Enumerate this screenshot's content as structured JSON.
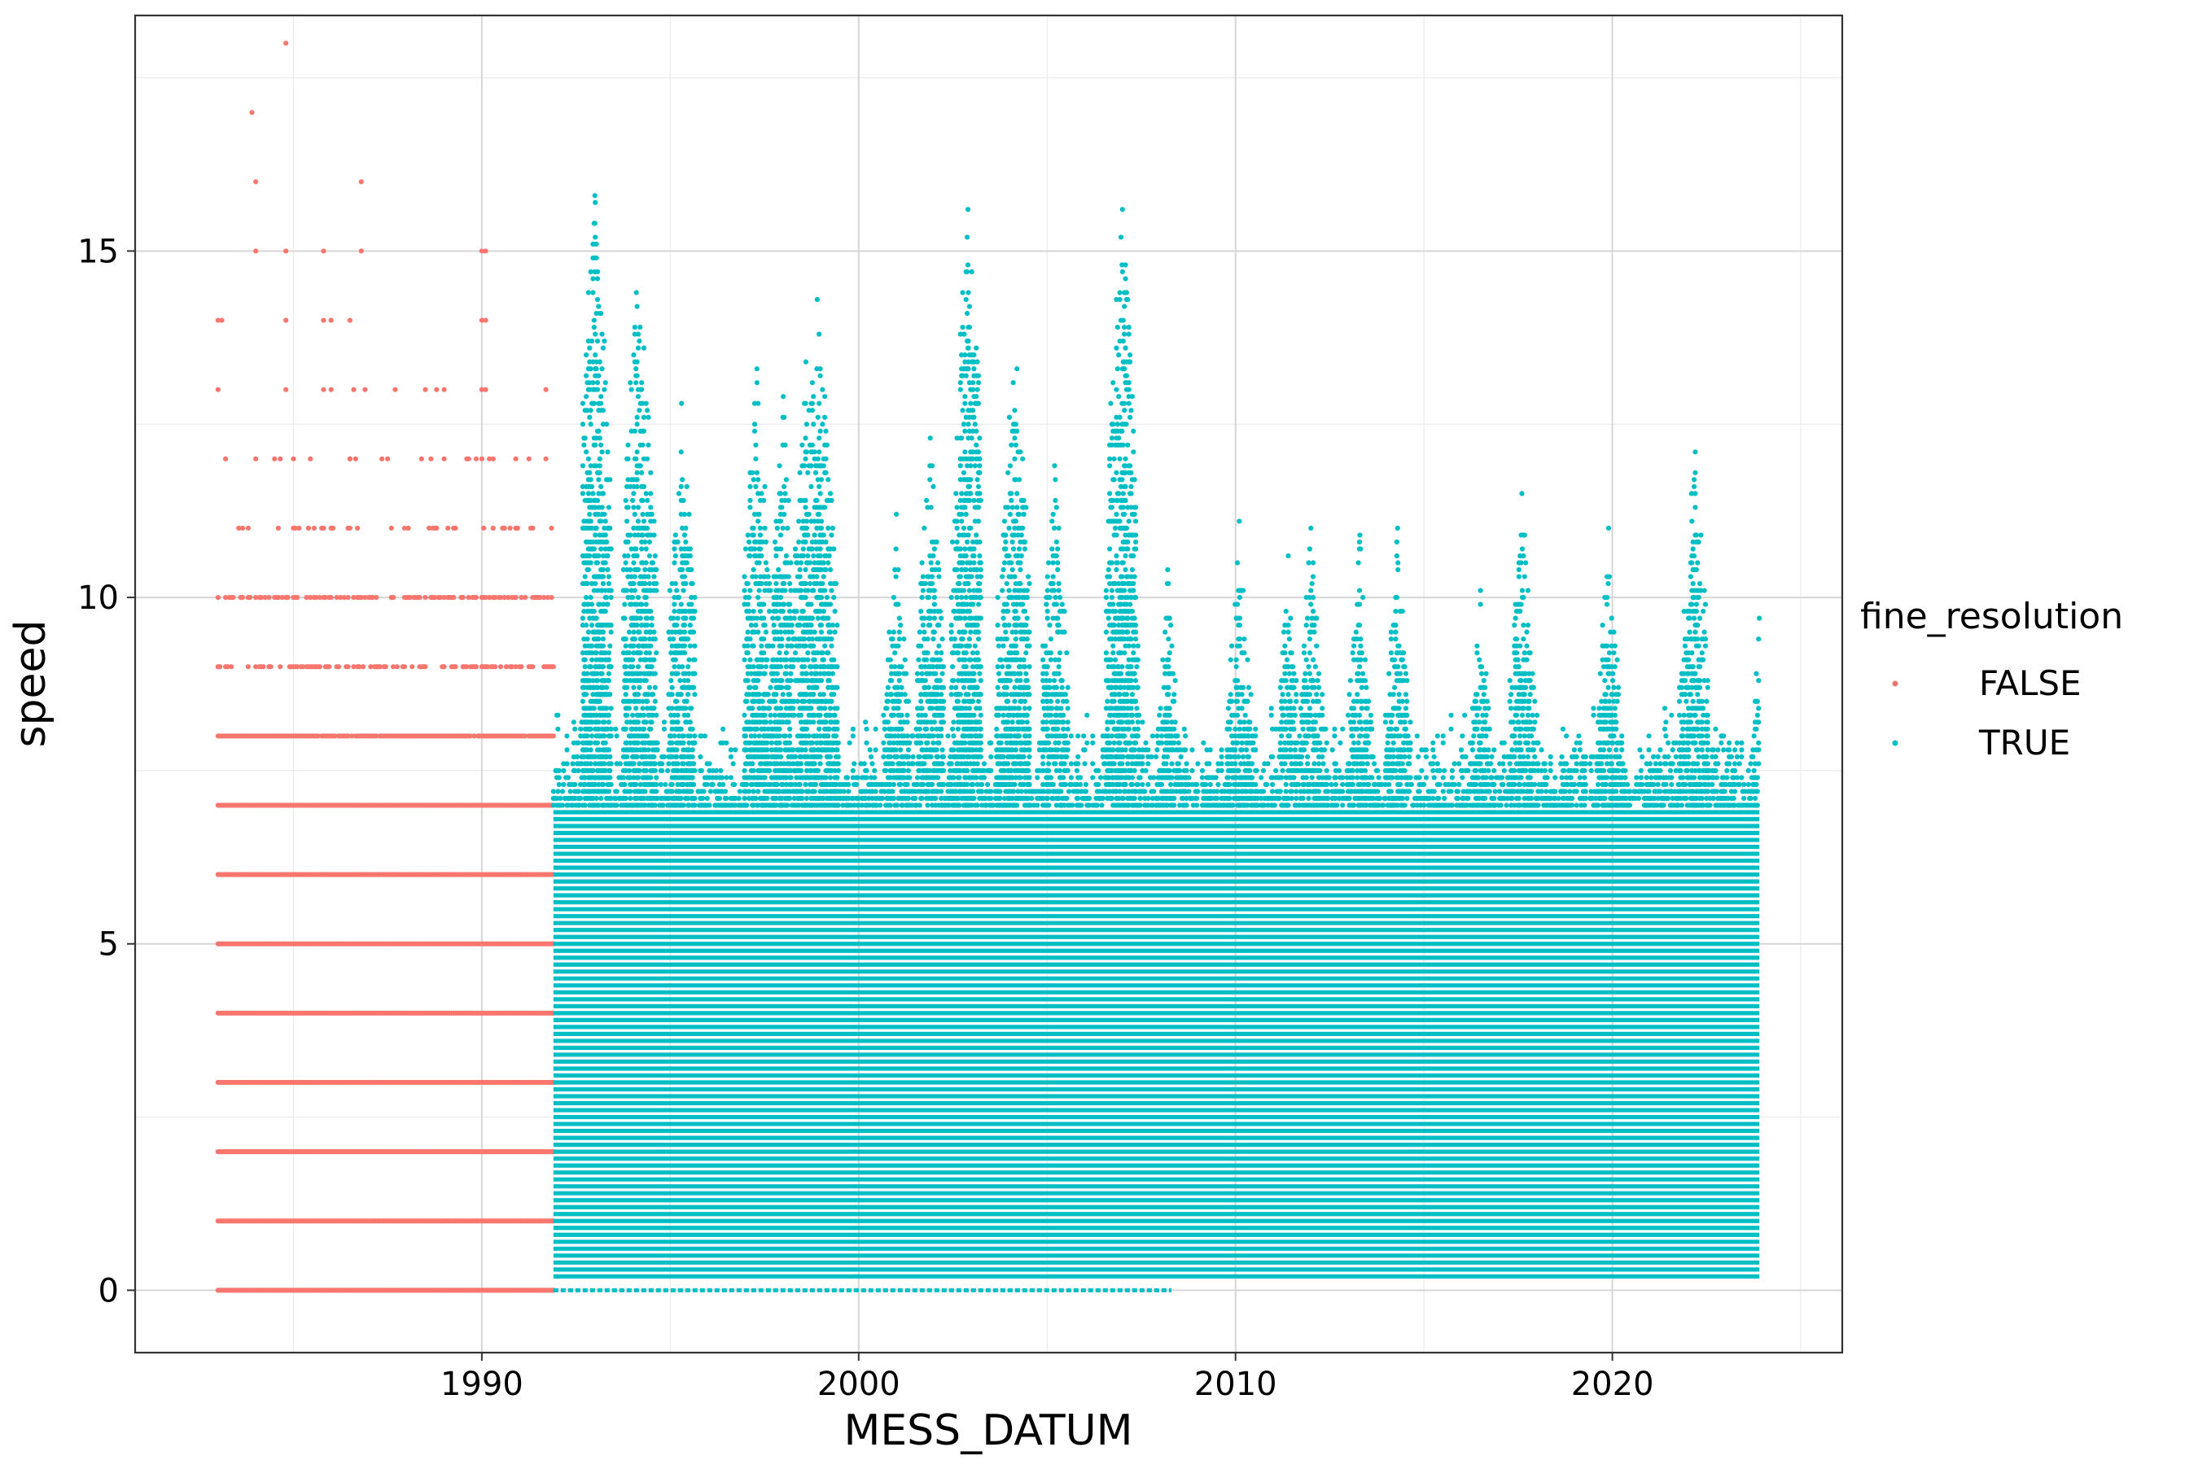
{
  "chart_data": {
    "type": "scatter",
    "title": "",
    "xlabel": "MESS_DATUM",
    "ylabel": "speed",
    "xlim": [
      1980.8,
      2026.1
    ],
    "ylim": [
      -0.9,
      18.4
    ],
    "x_ticks": [
      1990,
      2000,
      2010,
      2020
    ],
    "x_tick_labels": [
      "1990",
      "2000",
      "2010",
      "2020"
    ],
    "y_ticks": [
      0,
      5,
      10,
      15
    ],
    "y_tick_labels": [
      "0",
      "5",
      "10",
      "15"
    ],
    "grid": true,
    "legend": {
      "title": "fine_resolution",
      "position": "right",
      "entries": [
        {
          "label": "FALSE",
          "color": "#F8766D"
        },
        {
          "label": "TRUE",
          "color": "#00BFC4"
        }
      ]
    },
    "series": [
      {
        "name": "FALSE",
        "color": "#F8766D",
        "x_range": [
          1983.0,
          1991.9
        ],
        "levels": [
          0,
          1,
          2,
          3,
          4,
          5,
          6,
          7,
          8,
          9,
          10,
          11,
          12
        ],
        "points": [
          [
            1983.0,
            14
          ],
          [
            1983.1,
            14
          ],
          [
            1983.0,
            13
          ],
          [
            1983.9,
            17
          ],
          [
            1984.0,
            16
          ],
          [
            1984.0,
            15
          ],
          [
            1984.8,
            18
          ],
          [
            1984.8,
            15
          ],
          [
            1984.8,
            14
          ],
          [
            1984.8,
            13
          ],
          [
            1985.8,
            15
          ],
          [
            1985.8,
            14
          ],
          [
            1986.0,
            14
          ],
          [
            1985.8,
            13
          ],
          [
            1986.0,
            13
          ],
          [
            1986.5,
            14
          ],
          [
            1986.6,
            13
          ],
          [
            1986.8,
            16
          ],
          [
            1986.8,
            15
          ],
          [
            1986.9,
            13
          ],
          [
            1987.7,
            13
          ],
          [
            1988.5,
            13
          ],
          [
            1988.8,
            13
          ],
          [
            1989.0,
            13
          ],
          [
            1990.0,
            15
          ],
          [
            1990.1,
            15
          ],
          [
            1990.0,
            14
          ],
          [
            1990.1,
            14
          ],
          [
            1990.0,
            13
          ],
          [
            1990.1,
            13
          ],
          [
            1990.9,
            12
          ],
          [
            1991.7,
            13
          ],
          [
            1986.5,
            12
          ],
          [
            1985.0,
            12
          ],
          [
            1984.0,
            12
          ],
          [
            1988.4,
            12
          ],
          [
            1989.0,
            12
          ],
          [
            1989.6,
            12
          ],
          [
            1990.3,
            12
          ],
          [
            1990.2,
            12
          ],
          [
            1987.5,
            12
          ]
        ]
      },
      {
        "name": "TRUE",
        "color": "#00BFC4",
        "x_range": [
          1991.9,
          2023.9
        ],
        "peaks": [
          [
            1993.0,
            15.8
          ],
          [
            1993.0,
            15.4
          ],
          [
            1993.0,
            14.7
          ],
          [
            1993.1,
            14.2
          ],
          [
            1994.1,
            14.4
          ],
          [
            1994.2,
            13.9
          ],
          [
            1994.3,
            13.6
          ],
          [
            1995.3,
            12.8
          ],
          [
            1997.3,
            13.3
          ],
          [
            1998.0,
            12.9
          ],
          [
            1998.6,
            13.4
          ],
          [
            1998.9,
            14.3
          ],
          [
            1999.1,
            12.9
          ],
          [
            2002.9,
            15.6
          ],
          [
            2002.9,
            14.8
          ],
          [
            2002.8,
            13.8
          ],
          [
            2002.9,
            13.6
          ],
          [
            2004.1,
            13.1
          ],
          [
            2004.2,
            13.3
          ],
          [
            2004.0,
            12.6
          ],
          [
            2007.0,
            15.6
          ],
          [
            2007.0,
            14.7
          ],
          [
            2006.9,
            13.5
          ],
          [
            2007.0,
            13.3
          ],
          [
            2007.1,
            12.5
          ],
          [
            2010.1,
            11.1
          ],
          [
            2012.0,
            11.0
          ],
          [
            2013.3,
            10.9
          ],
          [
            2014.3,
            11.0
          ],
          [
            2017.6,
            11.5
          ],
          [
            2019.9,
            11.0
          ],
          [
            2022.2,
            12.1
          ],
          [
            2022.2,
            11.8
          ],
          [
            2022.1,
            11.5
          ],
          [
            2023.9,
            9.7
          ],
          [
            2008.2,
            10.4
          ],
          [
            2005.2,
            11.9
          ],
          [
            2001.9,
            12.3
          ],
          [
            2001.0,
            11.2
          ],
          [
            2016.5,
            10.1
          ],
          [
            2011.4,
            10.6
          ]
        ],
        "min_speed": 0.0,
        "max_speed": 15.8
      }
    ]
  }
}
